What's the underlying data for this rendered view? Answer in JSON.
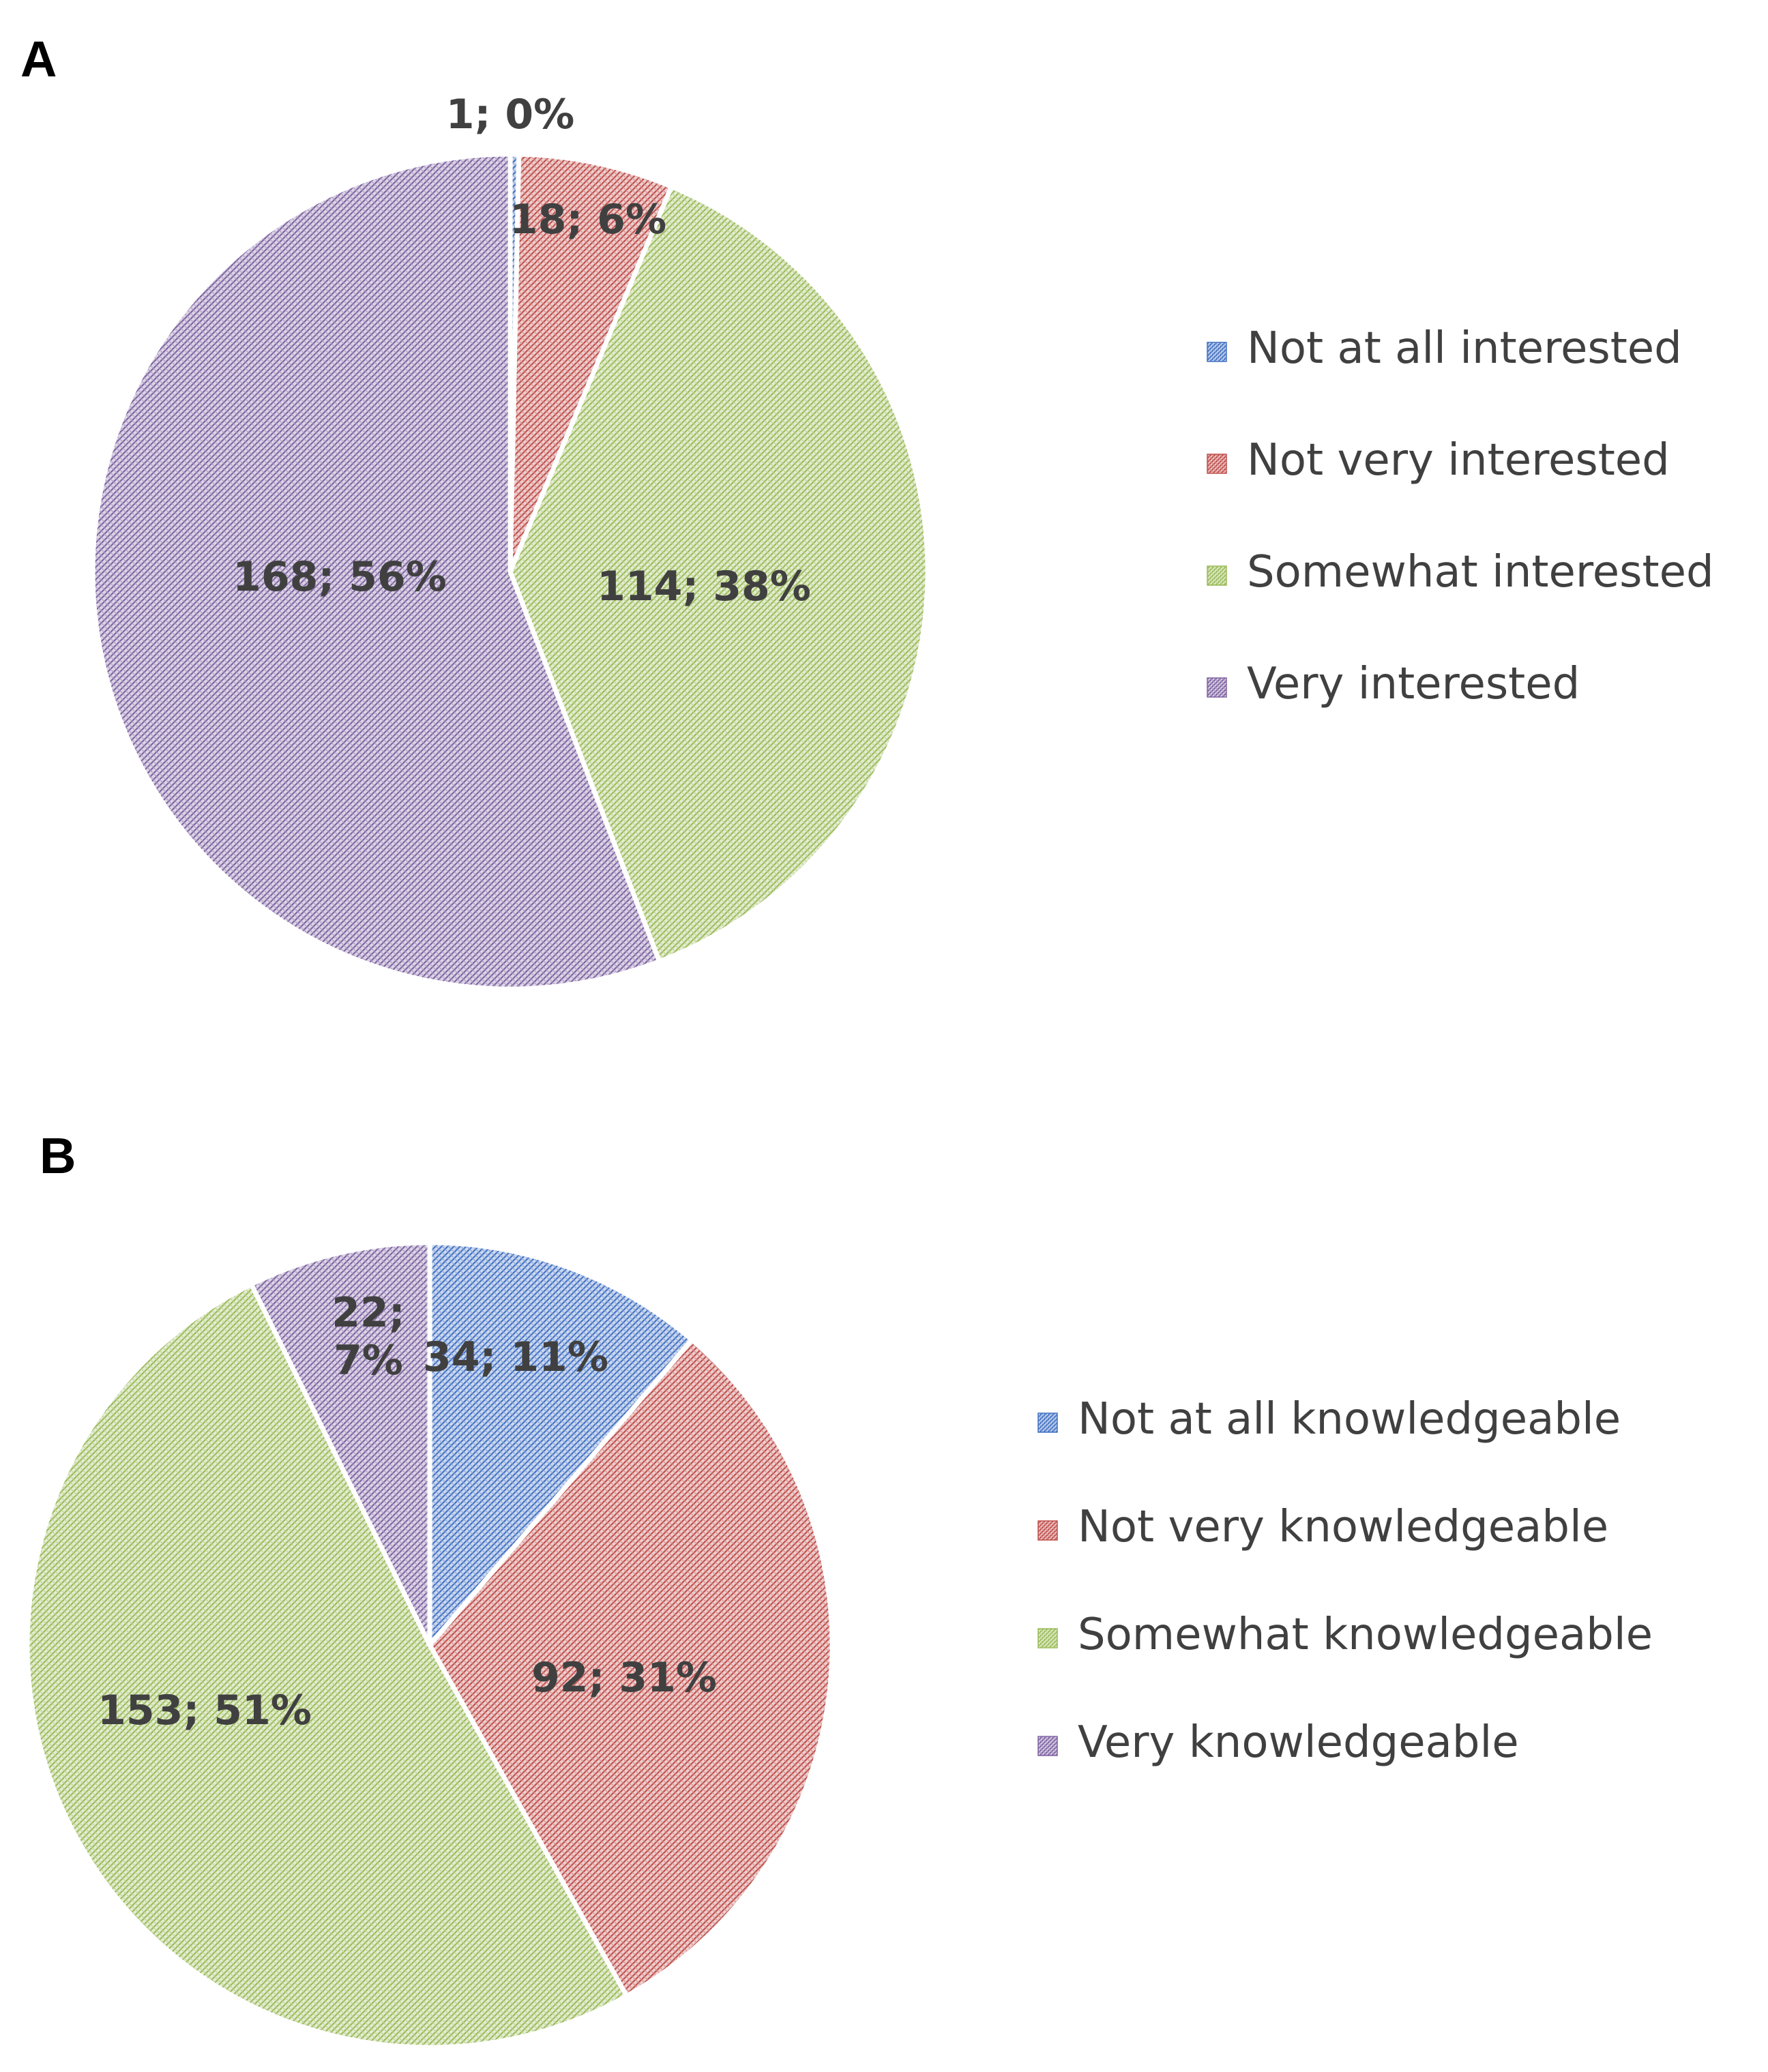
{
  "chart_data": [
    {
      "type": "pie",
      "panel": "A",
      "categories": [
        "Not at all interested",
        "Not very interested",
        "Somewhat interested",
        "Very interested"
      ],
      "values": [
        1,
        18,
        114,
        168
      ],
      "data_labels": [
        "1; 0%",
        "18; 6%",
        "114; 38%",
        "168; 56%"
      ],
      "colors": [
        "#4472C4",
        "#C0504D",
        "#9BBB59",
        "#8064A2"
      ],
      "start_angle_deg": 0,
      "direction": "clockwise",
      "legend_position": "right"
    },
    {
      "type": "pie",
      "panel": "B",
      "categories": [
        "Not at all knowledgeable",
        "Not very knowledgeable",
        "Somewhat knowledgeable",
        "Very knowledgeable"
      ],
      "values": [
        34,
        92,
        153,
        22
      ],
      "data_labels": [
        "34; 11%",
        "92; 31%",
        "153; 51%",
        "22; 7%"
      ],
      "colors": [
        "#4472C4",
        "#C0504D",
        "#9BBB59",
        "#8064A2"
      ],
      "start_angle_deg": 0,
      "direction": "clockwise",
      "legend_position": "right"
    }
  ]
}
